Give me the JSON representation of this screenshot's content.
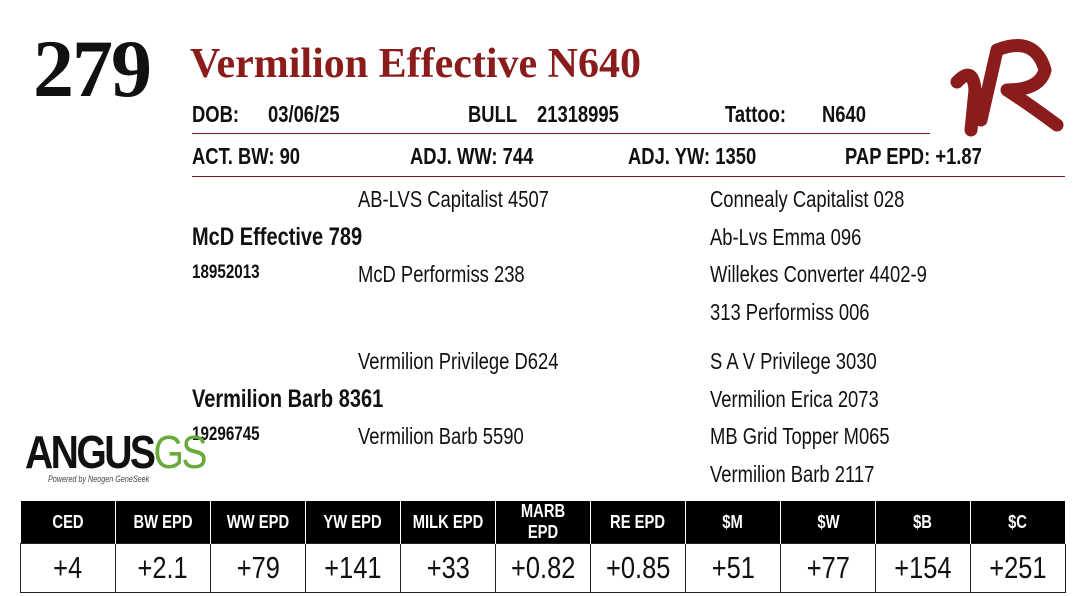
{
  "lot": "279",
  "title": "Vermilion Effective N640",
  "info": {
    "dob_label": "DOB:",
    "dob": "03/06/25",
    "sex": "BULL",
    "registration": "21318995",
    "tattoo_label": "Tattoo:",
    "tattoo": "N640"
  },
  "performance": [
    {
      "label": "ACT. BW:",
      "value": "90"
    },
    {
      "label": "ADJ. WW:",
      "value": "744"
    },
    {
      "label": "ADJ. YW:",
      "value": "1350"
    },
    {
      "label": "PAP EPD:",
      "value": "+1.87"
    }
  ],
  "pedigree": {
    "sire": {
      "name": "McD Effective 789",
      "registration": "18952013",
      "sire": "AB-LVS Capitalist 4507",
      "dam": "McD Performiss 238",
      "grandparents": [
        "Connealy Capitalist 028",
        "Ab-Lvs Emma 096",
        "Willekes Converter 4402-9",
        "313 Performiss 006"
      ]
    },
    "dam": {
      "name": "Vermilion Barb 8361",
      "registration": "19296745",
      "sire": "Vermilion Privilege D624",
      "dam": "Vermilion Barb 5590",
      "grandparents": [
        "S A V Privilege 3030",
        "Vermilion Erica 2073",
        "MB Grid Topper M065",
        "Vermilion Barb 2117"
      ]
    }
  },
  "logo": {
    "name": "ANGUS",
    "suffix": "GS",
    "tagline": "Powered by Neogen GeneSeek"
  },
  "epd_table": {
    "headers": [
      "CED",
      "BW EPD",
      "WW EPD",
      "YW EPD",
      "MILK EPD",
      "MARB EPD",
      "RE EPD",
      "$M",
      "$W",
      "$B",
      "$C"
    ],
    "values": [
      "+4",
      "+2.1",
      "+79",
      "+141",
      "+33",
      "+0.82",
      "+0.85",
      "+51",
      "+77",
      "+154",
      "+251"
    ]
  }
}
